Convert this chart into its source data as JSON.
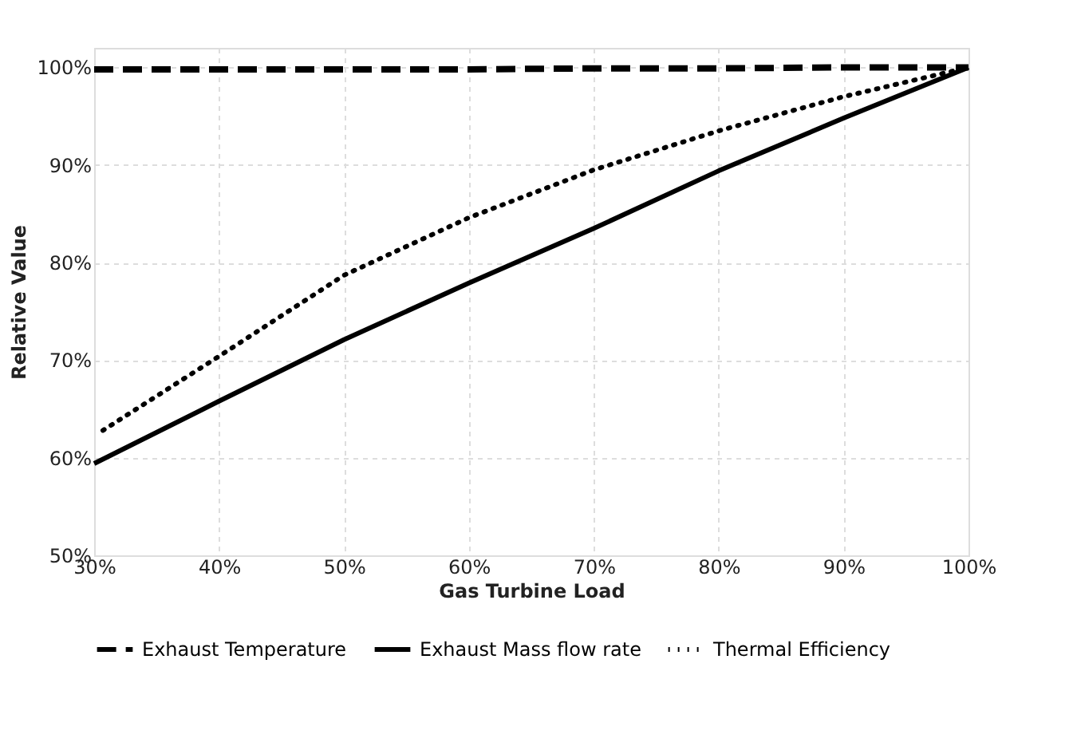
{
  "chart_data": {
    "type": "line",
    "xlabel": "Gas Turbine Load",
    "ylabel": "Relative Value",
    "x": [
      30,
      40,
      50,
      60,
      70,
      80,
      90,
      100
    ],
    "series": [
      {
        "name": "Exhaust Temperature",
        "color": "#000000",
        "line_style": "dashed",
        "values": [
          99.8,
          99.8,
          99.8,
          99.8,
          99.9,
          99.9,
          100,
          100
        ]
      },
      {
        "name": "Exhaust Mass flow rate",
        "color": "#000000",
        "line_style": "solid",
        "values": [
          59.4,
          65.8,
          72.1,
          77.9,
          83.5,
          89.4,
          94.8,
          100
        ]
      },
      {
        "name": "Thermal Efficiency",
        "color": "#000000",
        "line_style": "dotted",
        "x": [
          30.7,
          40,
          50,
          60,
          70,
          80,
          90,
          100
        ],
        "values": [
          62.8,
          70.4,
          78.7,
          84.6,
          89.5,
          93.5,
          97,
          100
        ]
      }
    ],
    "xlim": [
      30,
      100
    ],
    "ylim": [
      50,
      102
    ],
    "xticks": [
      {
        "value": 30,
        "label": "30%"
      },
      {
        "value": 40,
        "label": "40%"
      },
      {
        "value": 50,
        "label": "50%"
      },
      {
        "value": 60,
        "label": "60%"
      },
      {
        "value": 70,
        "label": "70%"
      },
      {
        "value": 80,
        "label": "80%"
      },
      {
        "value": 90,
        "label": "90%"
      },
      {
        "value": 100,
        "label": "100%"
      }
    ],
    "yticks": [
      {
        "value": 50,
        "label": "50%"
      },
      {
        "value": 60,
        "label": "60%"
      },
      {
        "value": 70,
        "label": "70%"
      },
      {
        "value": 80,
        "label": "80%"
      },
      {
        "value": 90,
        "label": "90%"
      },
      {
        "value": 100,
        "label": "100%"
      }
    ],
    "grid": true,
    "legend": "bottom",
    "marker": "none"
  }
}
